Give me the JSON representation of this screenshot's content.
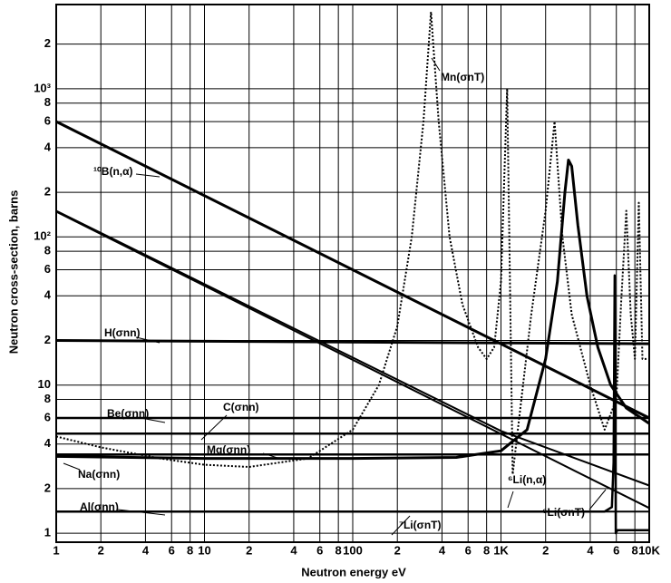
{
  "chart_data": {
    "type": "line",
    "x_label": "Neutron energy eV",
    "y_label": "Neutron cross-section, barns",
    "log_x": true,
    "log_y": true,
    "grid": true,
    "xlim": [
      1,
      10000
    ],
    "ylim": [
      0.87,
      3700
    ],
    "xticks": [
      1,
      2,
      4,
      6,
      8,
      10,
      {
        "value": 20,
        "label": "2"
      },
      {
        "value": 40,
        "label": "4"
      },
      {
        "value": 60,
        "label": "6"
      },
      {
        "value": 80,
        "label": "8"
      },
      100,
      {
        "value": 200,
        "label": "2"
      },
      {
        "value": 400,
        "label": "4"
      },
      {
        "value": 600,
        "label": "6"
      },
      {
        "value": 800,
        "label": "8"
      },
      {
        "value": 1000,
        "label": "1K"
      },
      {
        "value": 2000,
        "label": "2"
      },
      {
        "value": 4000,
        "label": "4"
      },
      {
        "value": 6000,
        "label": "6"
      },
      {
        "value": 8000,
        "label": "8"
      },
      {
        "value": 10000,
        "label": "10K"
      }
    ],
    "yticks": [
      1,
      2,
      4,
      6,
      8,
      10,
      {
        "value": 20,
        "label": "2"
      },
      {
        "value": 40,
        "label": "4"
      },
      {
        "value": 60,
        "label": "6"
      },
      {
        "value": 80,
        "label": "8"
      },
      {
        "value": 100,
        "label": "10²"
      },
      {
        "value": 200,
        "label": "2"
      },
      {
        "value": 400,
        "label": "4"
      },
      {
        "value": 600,
        "label": "6"
      },
      {
        "value": 800,
        "label": "8"
      },
      {
        "value": 1000,
        "label": "10³"
      },
      {
        "value": 2000,
        "label": "2"
      }
    ],
    "series": [
      {
        "name": "¹⁰B(n,α)",
        "color": "#000000",
        "style": "solid",
        "width": 3,
        "x": [
          1,
          10000
        ],
        "values": [
          600,
          6
        ]
      },
      {
        "name": "⁶Li(σnT)",
        "color": "#000000",
        "style": "solid",
        "width": 2,
        "x": [
          1,
          1000,
          10000
        ],
        "values": [
          150,
          4.9,
          2.1
        ]
      },
      {
        "name": "⁶Li(n,α)",
        "color": "#000000",
        "style": "solid",
        "width": 2,
        "x": [
          1,
          10000
        ],
        "values": [
          148,
          1.48
        ]
      },
      {
        "name": "H(σnn)",
        "color": "#000000",
        "style": "solid",
        "width": 3,
        "x": [
          1,
          10000
        ],
        "values": [
          20,
          19
        ]
      },
      {
        "name": "Be(σnn)",
        "color": "#000000",
        "style": "solid",
        "width": 2.5,
        "x": [
          1,
          10000
        ],
        "values": [
          6,
          6
        ]
      },
      {
        "name": "C(σnn)",
        "color": "#000000",
        "style": "solid",
        "width": 2.5,
        "x": [
          1,
          10000
        ],
        "values": [
          4.7,
          4.7
        ]
      },
      {
        "name": "Mg(σnn)",
        "color": "#000000",
        "style": "solid",
        "width": 2.5,
        "x": [
          1,
          10000
        ],
        "values": [
          3.4,
          3.4
        ]
      },
      {
        "name": "Na(σnn)",
        "color": "#000000",
        "style": "solid",
        "width": 3,
        "x": [
          1,
          10,
          100,
          500,
          1000,
          1500,
          2000,
          2400,
          2700,
          2850,
          3000,
          3300,
          3800,
          4500,
          5500,
          7000,
          10000
        ],
        "values": [
          3.3,
          3.2,
          3.2,
          3.25,
          3.6,
          5,
          15,
          50,
          200,
          330,
          300,
          120,
          40,
          18,
          10,
          7,
          5.5
        ]
      },
      {
        "name": "Al(σnn)",
        "color": "#000000",
        "style": "solid",
        "width": 2.5,
        "x": [
          1,
          1000,
          5000,
          5600,
          5750,
          5850,
          5950,
          6100,
          10000
        ],
        "values": [
          1.4,
          1.4,
          1.4,
          1.5,
          3,
          55,
          1,
          1.05,
          1.05
        ]
      },
      {
        "name": "⁷Li(σnT)",
        "color": "#000000",
        "style": "solid",
        "width": 2,
        "x": [
          1,
          10000
        ],
        "values": [
          1.4,
          1.4
        ]
      },
      {
        "name": "Mn(σnT)",
        "color": "#000000",
        "style": "dotted",
        "width": 2,
        "x": [
          1,
          2,
          5,
          10,
          20,
          50,
          100,
          150,
          200,
          250,
          300,
          337,
          380,
          450,
          550,
          700,
          800,
          900,
          1000,
          1100,
          1150,
          1200,
          1300,
          1600,
          2000,
          2300,
          2600,
          3000,
          4000,
          5000,
          6000,
          6500,
          7000,
          7500,
          8000,
          8500,
          9000,
          10000
        ],
        "values": [
          4.5,
          3.8,
          3.2,
          2.9,
          2.8,
          3.2,
          5,
          10,
          25,
          100,
          600,
          3300,
          600,
          100,
          35,
          18,
          15,
          18,
          50,
          1000,
          50,
          2.5,
          5,
          30,
          150,
          600,
          100,
          30,
          10,
          5,
          8,
          40,
          150,
          30,
          15,
          170,
          15,
          15
        ]
      }
    ]
  }
}
